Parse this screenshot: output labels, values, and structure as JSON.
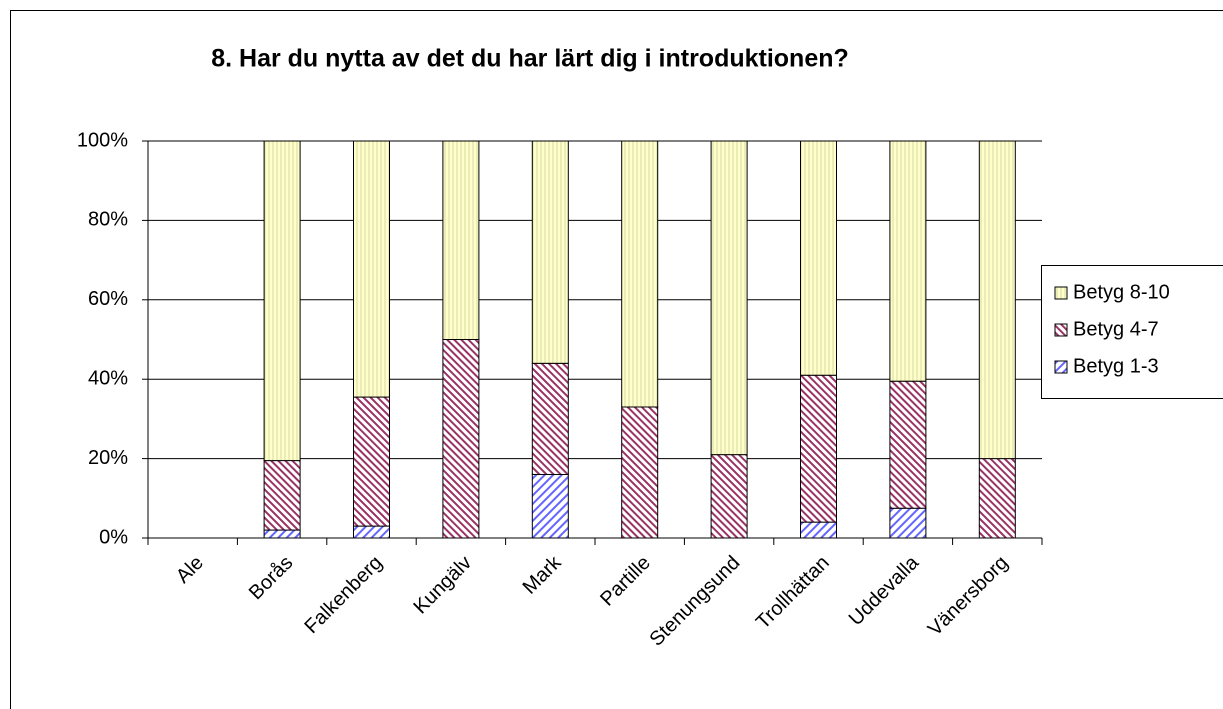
{
  "chart_data": {
    "type": "stacked_bar",
    "title": "8. Har du nytta av det du har lärt dig i introduktionen?",
    "categories": [
      "Ale",
      "Borås",
      "Falkenberg",
      "Kungälv",
      "Mark",
      "Partille",
      "Stenungsund",
      "Trollhättan",
      "Uddevalla",
      "Vänersborg"
    ],
    "series": [
      {
        "name": "Betyg 1-3",
        "color": "#6666ff",
        "values": [
          null,
          2,
          3,
          0,
          16,
          0,
          0,
          4,
          7.5,
          0
        ]
      },
      {
        "name": "Betyg 4-7",
        "color": "#993366",
        "values": [
          null,
          17.5,
          32.5,
          50,
          28,
          33,
          21,
          37,
          32,
          20
        ]
      },
      {
        "name": "Betyg 8-10",
        "color": "#ffffcc",
        "values": [
          null,
          80.5,
          64.5,
          50,
          56,
          67,
          79,
          59,
          60.5,
          80
        ]
      }
    ],
    "ylim": [
      0,
      100
    ],
    "yticks": [
      {
        "value": 0,
        "label": "0%"
      },
      {
        "value": 20,
        "label": "20%"
      },
      {
        "value": 40,
        "label": "40%"
      },
      {
        "value": 60,
        "label": "60%"
      },
      {
        "value": 80,
        "label": "80%"
      },
      {
        "value": 100,
        "label": "100%"
      }
    ],
    "grid": true,
    "legend": "right"
  }
}
